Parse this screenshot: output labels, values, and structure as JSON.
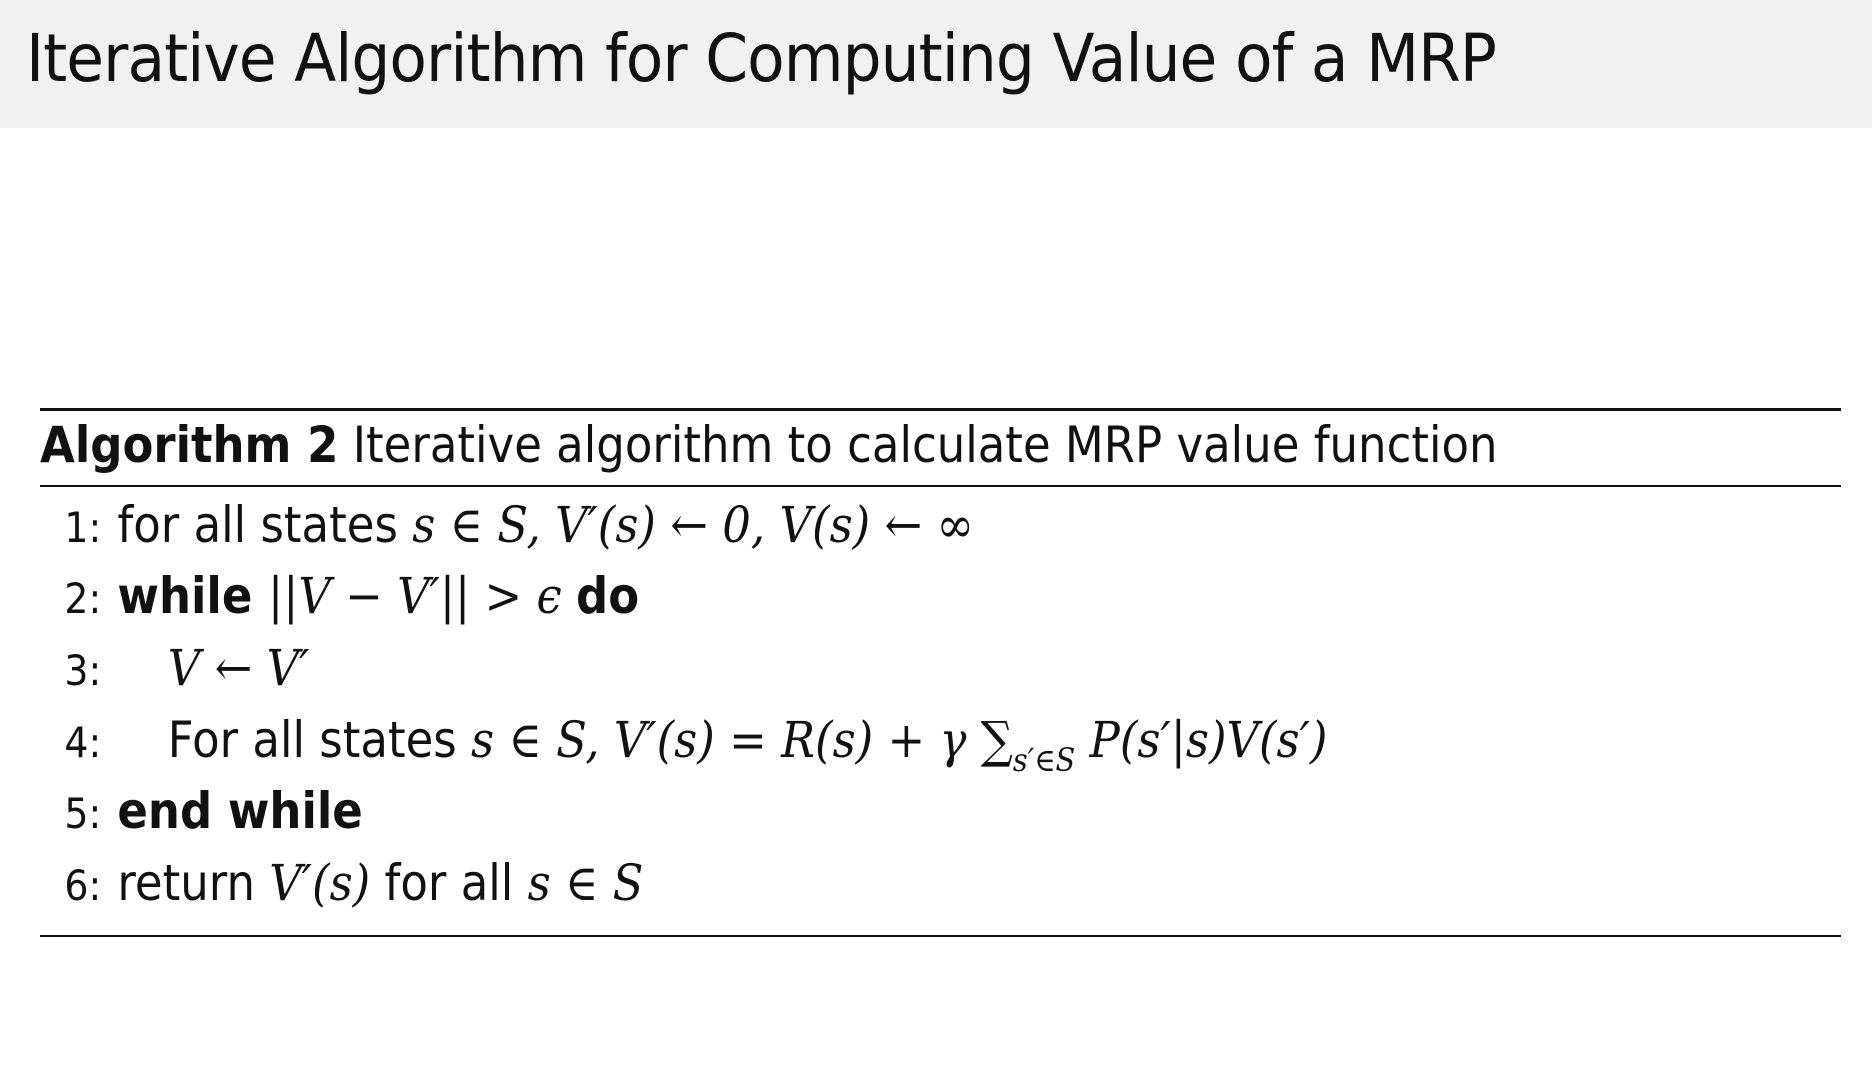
{
  "slide": {
    "title": "Iterative Algorithm for Computing Value of a MRP"
  },
  "algorithm": {
    "label": "Algorithm 2",
    "caption": "Iterative algorithm to calculate MRP value function",
    "lines": [
      {
        "number": "1:",
        "indent": 0,
        "segments": [
          {
            "t": "for all states ",
            "s": "text"
          },
          {
            "t": "s ∈ S, V′(s) ← 0, V(s) ← ∞",
            "s": "math"
          }
        ]
      },
      {
        "number": "2:",
        "indent": 0,
        "segments": [
          {
            "t": "while ",
            "s": "kw"
          },
          {
            "t": "||V − V′|| > ϵ ",
            "s": "math"
          },
          {
            "t": "do",
            "s": "kw"
          }
        ]
      },
      {
        "number": "3:",
        "indent": 1,
        "segments": [
          {
            "t": "V ← V′",
            "s": "math"
          }
        ]
      },
      {
        "number": "4:",
        "indent": 1,
        "segments": [
          {
            "t": "For all states ",
            "s": "text"
          },
          {
            "t": "s ∈ S, V′(s) = R(s) + γ ∑",
            "s": "math"
          },
          {
            "t": "s′∈S",
            "s": "sub"
          },
          {
            "t": " P(s′|s)V(s′)",
            "s": "math"
          }
        ]
      },
      {
        "number": "5:",
        "indent": 0,
        "segments": [
          {
            "t": "end while",
            "s": "kw"
          }
        ]
      },
      {
        "number": "6:",
        "indent": 0,
        "segments": [
          {
            "t": "return ",
            "s": "text"
          },
          {
            "t": "V′(s)",
            "s": "math"
          },
          {
            "t": " for all ",
            "s": "text"
          },
          {
            "t": "s ∈ S",
            "s": "math"
          }
        ]
      }
    ]
  }
}
